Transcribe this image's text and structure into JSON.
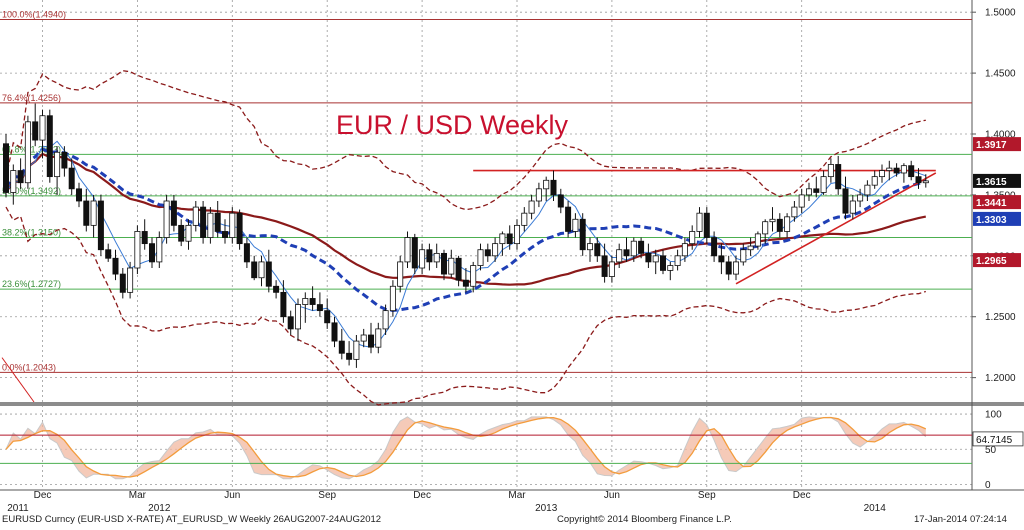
{
  "chart_data": [
    {
      "type": "candlestick",
      "title": "EUR / USD Weekly",
      "ylim": [
        1.18,
        1.51
      ],
      "grid": true,
      "yticks": [
        1.5,
        1.45,
        1.4,
        1.35,
        1.3,
        1.25,
        1.2
      ],
      "ytick_labels": [
        "1.5000",
        "1.4500",
        "1.4000",
        "1.3500",
        "1.3000",
        "1.2500",
        "1.2000"
      ],
      "candles": [
        {
          "o": 1.392,
          "h": 1.4,
          "l": 1.348,
          "c": 1.352
        },
        {
          "o": 1.352,
          "h": 1.375,
          "l": 1.342,
          "c": 1.37
        },
        {
          "o": 1.37,
          "h": 1.38,
          "l": 1.355,
          "c": 1.36
        },
        {
          "o": 1.36,
          "h": 1.415,
          "l": 1.355,
          "c": 1.41
        },
        {
          "o": 1.41,
          "h": 1.425,
          "l": 1.39,
          "c": 1.395
        },
        {
          "o": 1.395,
          "h": 1.42,
          "l": 1.38,
          "c": 1.415
        },
        {
          "o": 1.415,
          "h": 1.42,
          "l": 1.36,
          "c": 1.365
        },
        {
          "o": 1.365,
          "h": 1.39,
          "l": 1.35,
          "c": 1.385
        },
        {
          "o": 1.385,
          "h": 1.39,
          "l": 1.365,
          "c": 1.372
        },
        {
          "o": 1.372,
          "h": 1.38,
          "l": 1.35,
          "c": 1.355
        },
        {
          "o": 1.355,
          "h": 1.36,
          "l": 1.34,
          "c": 1.345
        },
        {
          "o": 1.345,
          "h": 1.355,
          "l": 1.32,
          "c": 1.325
        },
        {
          "o": 1.325,
          "h": 1.35,
          "l": 1.315,
          "c": 1.345
        },
        {
          "o": 1.345,
          "h": 1.35,
          "l": 1.3,
          "c": 1.305
        },
        {
          "o": 1.305,
          "h": 1.31,
          "l": 1.295,
          "c": 1.298
        },
        {
          "o": 1.298,
          "h": 1.305,
          "l": 1.28,
          "c": 1.285
        },
        {
          "o": 1.285,
          "h": 1.29,
          "l": 1.265,
          "c": 1.27
        },
        {
          "o": 1.27,
          "h": 1.295,
          "l": 1.265,
          "c": 1.29
        },
        {
          "o": 1.29,
          "h": 1.325,
          "l": 1.285,
          "c": 1.32
        },
        {
          "o": 1.32,
          "h": 1.33,
          "l": 1.305,
          "c": 1.31
        },
        {
          "o": 1.31,
          "h": 1.315,
          "l": 1.29,
          "c": 1.295
        },
        {
          "o": 1.295,
          "h": 1.32,
          "l": 1.29,
          "c": 1.315
        },
        {
          "o": 1.315,
          "h": 1.35,
          "l": 1.31,
          "c": 1.345
        },
        {
          "o": 1.345,
          "h": 1.35,
          "l": 1.32,
          "c": 1.325
        },
        {
          "o": 1.325,
          "h": 1.33,
          "l": 1.308,
          "c": 1.312
        },
        {
          "o": 1.312,
          "h": 1.33,
          "l": 1.305,
          "c": 1.325
        },
        {
          "o": 1.325,
          "h": 1.345,
          "l": 1.32,
          "c": 1.34
        },
        {
          "o": 1.34,
          "h": 1.345,
          "l": 1.31,
          "c": 1.315
        },
        {
          "o": 1.315,
          "h": 1.34,
          "l": 1.31,
          "c": 1.335
        },
        {
          "o": 1.335,
          "h": 1.345,
          "l": 1.315,
          "c": 1.32
        },
        {
          "o": 1.32,
          "h": 1.33,
          "l": 1.31,
          "c": 1.315
        },
        {
          "o": 1.315,
          "h": 1.34,
          "l": 1.31,
          "c": 1.335
        },
        {
          "o": 1.335,
          "h": 1.338,
          "l": 1.305,
          "c": 1.31
        },
        {
          "o": 1.31,
          "h": 1.315,
          "l": 1.29,
          "c": 1.295
        },
        {
          "o": 1.295,
          "h": 1.3,
          "l": 1.28,
          "c": 1.282
        },
        {
          "o": 1.282,
          "h": 1.3,
          "l": 1.275,
          "c": 1.295
        },
        {
          "o": 1.295,
          "h": 1.305,
          "l": 1.27,
          "c": 1.275
        },
        {
          "o": 1.275,
          "h": 1.28,
          "l": 1.265,
          "c": 1.27
        },
        {
          "o": 1.27,
          "h": 1.28,
          "l": 1.245,
          "c": 1.25
        },
        {
          "o": 1.25,
          "h": 1.255,
          "l": 1.235,
          "c": 1.24
        },
        {
          "o": 1.24,
          "h": 1.265,
          "l": 1.23,
          "c": 1.26
        },
        {
          "o": 1.26,
          "h": 1.27,
          "l": 1.245,
          "c": 1.265
        },
        {
          "o": 1.265,
          "h": 1.275,
          "l": 1.255,
          "c": 1.26
        },
        {
          "o": 1.26,
          "h": 1.27,
          "l": 1.25,
          "c": 1.255
        },
        {
          "o": 1.255,
          "h": 1.265,
          "l": 1.24,
          "c": 1.245
        },
        {
          "o": 1.245,
          "h": 1.25,
          "l": 1.225,
          "c": 1.23
        },
        {
          "o": 1.23,
          "h": 1.24,
          "l": 1.215,
          "c": 1.22
        },
        {
          "o": 1.22,
          "h": 1.23,
          "l": 1.21,
          "c": 1.215
        },
        {
          "o": 1.215,
          "h": 1.235,
          "l": 1.208,
          "c": 1.23
        },
        {
          "o": 1.23,
          "h": 1.24,
          "l": 1.225,
          "c": 1.235
        },
        {
          "o": 1.235,
          "h": 1.245,
          "l": 1.22,
          "c": 1.225
        },
        {
          "o": 1.225,
          "h": 1.245,
          "l": 1.22,
          "c": 1.24
        },
        {
          "o": 1.24,
          "h": 1.26,
          "l": 1.235,
          "c": 1.255
        },
        {
          "o": 1.255,
          "h": 1.28,
          "l": 1.25,
          "c": 1.275
        },
        {
          "o": 1.275,
          "h": 1.3,
          "l": 1.27,
          "c": 1.295
        },
        {
          "o": 1.295,
          "h": 1.32,
          "l": 1.29,
          "c": 1.315
        },
        {
          "o": 1.315,
          "h": 1.318,
          "l": 1.285,
          "c": 1.29
        },
        {
          "o": 1.29,
          "h": 1.31,
          "l": 1.285,
          "c": 1.305
        },
        {
          "o": 1.305,
          "h": 1.31,
          "l": 1.288,
          "c": 1.295
        },
        {
          "o": 1.295,
          "h": 1.31,
          "l": 1.29,
          "c": 1.302
        },
        {
          "o": 1.302,
          "h": 1.305,
          "l": 1.28,
          "c": 1.285
        },
        {
          "o": 1.285,
          "h": 1.305,
          "l": 1.282,
          "c": 1.298
        },
        {
          "o": 1.298,
          "h": 1.3,
          "l": 1.275,
          "c": 1.28
        },
        {
          "o": 1.28,
          "h": 1.29,
          "l": 1.27,
          "c": 1.275
        },
        {
          "o": 1.275,
          "h": 1.295,
          "l": 1.27,
          "c": 1.292
        },
        {
          "o": 1.292,
          "h": 1.31,
          "l": 1.288,
          "c": 1.305
        },
        {
          "o": 1.305,
          "h": 1.31,
          "l": 1.295,
          "c": 1.3
        },
        {
          "o": 1.3,
          "h": 1.315,
          "l": 1.295,
          "c": 1.31
        },
        {
          "o": 1.31,
          "h": 1.32,
          "l": 1.3,
          "c": 1.318
        },
        {
          "o": 1.318,
          "h": 1.325,
          "l": 1.305,
          "c": 1.31
        },
        {
          "o": 1.31,
          "h": 1.33,
          "l": 1.305,
          "c": 1.325
        },
        {
          "o": 1.325,
          "h": 1.34,
          "l": 1.32,
          "c": 1.335
        },
        {
          "o": 1.335,
          "h": 1.35,
          "l": 1.33,
          "c": 1.345
        },
        {
          "o": 1.345,
          "h": 1.36,
          "l": 1.34,
          "c": 1.355
        },
        {
          "o": 1.355,
          "h": 1.365,
          "l": 1.345,
          "c": 1.362
        },
        {
          "o": 1.362,
          "h": 1.37,
          "l": 1.345,
          "c": 1.35
        },
        {
          "o": 1.35,
          "h": 1.355,
          "l": 1.335,
          "c": 1.34
        },
        {
          "o": 1.34,
          "h": 1.345,
          "l": 1.315,
          "c": 1.32
        },
        {
          "o": 1.32,
          "h": 1.335,
          "l": 1.315,
          "c": 1.33
        },
        {
          "o": 1.33,
          "h": 1.335,
          "l": 1.3,
          "c": 1.305
        },
        {
          "o": 1.305,
          "h": 1.315,
          "l": 1.295,
          "c": 1.31
        },
        {
          "o": 1.31,
          "h": 1.315,
          "l": 1.295,
          "c": 1.3
        },
        {
          "o": 1.3,
          "h": 1.31,
          "l": 1.278,
          "c": 1.283
        },
        {
          "o": 1.283,
          "h": 1.3,
          "l": 1.278,
          "c": 1.295
        },
        {
          "o": 1.295,
          "h": 1.31,
          "l": 1.29,
          "c": 1.305
        },
        {
          "o": 1.305,
          "h": 1.315,
          "l": 1.295,
          "c": 1.3
        },
        {
          "o": 1.3,
          "h": 1.315,
          "l": 1.295,
          "c": 1.312
        },
        {
          "o": 1.312,
          "h": 1.315,
          "l": 1.298,
          "c": 1.302
        },
        {
          "o": 1.302,
          "h": 1.31,
          "l": 1.29,
          "c": 1.295
        },
        {
          "o": 1.295,
          "h": 1.305,
          "l": 1.285,
          "c": 1.3
        },
        {
          "o": 1.3,
          "h": 1.305,
          "l": 1.285,
          "c": 1.288
        },
        {
          "o": 1.288,
          "h": 1.295,
          "l": 1.28,
          "c": 1.292
        },
        {
          "o": 1.292,
          "h": 1.305,
          "l": 1.288,
          "c": 1.3
        },
        {
          "o": 1.3,
          "h": 1.315,
          "l": 1.295,
          "c": 1.31
        },
        {
          "o": 1.31,
          "h": 1.325,
          "l": 1.305,
          "c": 1.32
        },
        {
          "o": 1.32,
          "h": 1.34,
          "l": 1.315,
          "c": 1.335
        },
        {
          "o": 1.335,
          "h": 1.34,
          "l": 1.31,
          "c": 1.315
        },
        {
          "o": 1.315,
          "h": 1.32,
          "l": 1.295,
          "c": 1.3
        },
        {
          "o": 1.3,
          "h": 1.31,
          "l": 1.285,
          "c": 1.295
        },
        {
          "o": 1.295,
          "h": 1.3,
          "l": 1.28,
          "c": 1.285
        },
        {
          "o": 1.285,
          "h": 1.3,
          "l": 1.28,
          "c": 1.295
        },
        {
          "o": 1.295,
          "h": 1.31,
          "l": 1.292,
          "c": 1.305
        },
        {
          "o": 1.305,
          "h": 1.315,
          "l": 1.3,
          "c": 1.308
        },
        {
          "o": 1.308,
          "h": 1.32,
          "l": 1.305,
          "c": 1.318
        },
        {
          "o": 1.318,
          "h": 1.33,
          "l": 1.31,
          "c": 1.328
        },
        {
          "o": 1.328,
          "h": 1.34,
          "l": 1.32,
          "c": 1.33
        },
        {
          "o": 1.33,
          "h": 1.335,
          "l": 1.315,
          "c": 1.32
        },
        {
          "o": 1.32,
          "h": 1.335,
          "l": 1.315,
          "c": 1.332
        },
        {
          "o": 1.332,
          "h": 1.345,
          "l": 1.328,
          "c": 1.34
        },
        {
          "o": 1.34,
          "h": 1.355,
          "l": 1.335,
          "c": 1.35
        },
        {
          "o": 1.35,
          "h": 1.36,
          "l": 1.345,
          "c": 1.355
        },
        {
          "o": 1.355,
          "h": 1.365,
          "l": 1.348,
          "c": 1.352
        },
        {
          "o": 1.352,
          "h": 1.37,
          "l": 1.35,
          "c": 1.365
        },
        {
          "o": 1.365,
          "h": 1.38,
          "l": 1.36,
          "c": 1.375
        },
        {
          "o": 1.375,
          "h": 1.382,
          "l": 1.35,
          "c": 1.355
        },
        {
          "o": 1.355,
          "h": 1.365,
          "l": 1.33,
          "c": 1.335
        },
        {
          "o": 1.335,
          "h": 1.35,
          "l": 1.33,
          "c": 1.345
        },
        {
          "o": 1.345,
          "h": 1.355,
          "l": 1.34,
          "c": 1.35
        },
        {
          "o": 1.35,
          "h": 1.362,
          "l": 1.345,
          "c": 1.358
        },
        {
          "o": 1.358,
          "h": 1.37,
          "l": 1.355,
          "c": 1.365
        },
        {
          "o": 1.365,
          "h": 1.375,
          "l": 1.36,
          "c": 1.37
        },
        {
          "o": 1.37,
          "h": 1.378,
          "l": 1.362,
          "c": 1.372
        },
        {
          "o": 1.372,
          "h": 1.376,
          "l": 1.365,
          "c": 1.368
        },
        {
          "o": 1.368,
          "h": 1.376,
          "l": 1.36,
          "c": 1.374
        },
        {
          "o": 1.374,
          "h": 1.378,
          "l": 1.362,
          "c": 1.365
        },
        {
          "o": 1.365,
          "h": 1.372,
          "l": 1.355,
          "c": 1.36
        },
        {
          "o": 1.36,
          "h": 1.367,
          "l": 1.356,
          "c": 1.3615
        }
      ]
    },
    {
      "type": "line",
      "ylim": [
        -5,
        110
      ],
      "yticks": [
        0,
        50,
        100
      ],
      "ytick_labels": [
        "0",
        "50",
        "100"
      ]
    }
  ],
  "x_labels": [
    {
      "label": "Dec",
      "w": 5
    },
    {
      "label": "Mar",
      "w": 18
    },
    {
      "label": "Jun",
      "w": 31
    },
    {
      "label": "Sep",
      "w": 44
    },
    {
      "label": "Dec",
      "w": 57
    },
    {
      "label": "Mar",
      "w": 70
    },
    {
      "label": "Jun",
      "w": 83
    },
    {
      "label": "Sep",
      "w": 96
    },
    {
      "label": "Dec",
      "w": 109
    }
  ],
  "year_labels": [
    {
      "label": "2011",
      "w": -7
    },
    {
      "label": "2012",
      "w": 21
    },
    {
      "label": "2013",
      "w": 74
    },
    {
      "label": "2014",
      "w": 119
    }
  ],
  "fib_levels": [
    {
      "label": "100.0%(1.4940)",
      "value": 1.494
    },
    {
      "label": "76.4%(1.4256)",
      "value": 1.4256
    },
    {
      "label": "61.8%(1.3833)",
      "value": 1.3833
    },
    {
      "label": "50.0%(1.3492)",
      "value": 1.3492
    },
    {
      "label": "38.2%(1.3150)",
      "value": 1.315
    },
    {
      "label": "23.6%(1.2727)",
      "value": 1.2727
    },
    {
      "label": "0.0%(1.2043)",
      "value": 1.2043
    }
  ],
  "price_tags": [
    {
      "label": "1.3917",
      "value": 1.3917,
      "color": "#b2182b"
    },
    {
      "label": "1.3615",
      "value": 1.3615,
      "color": "#111111"
    },
    {
      "label": "1.3441",
      "value": 1.3441,
      "color": "#b2182b"
    },
    {
      "label": "1.3303",
      "value": 1.3303,
      "color": "#1f3fb5"
    },
    {
      "label": "1.2965",
      "value": 1.2965,
      "color": "#b2182b"
    }
  ],
  "osc_tag": {
    "label": "64.7145",
    "value": 64.7145
  },
  "osc_levels": {
    "upper": 70,
    "lower": 30
  },
  "resistance_level": 1.37,
  "footer": {
    "left": "EURUSD Curncy (EUR-USD X-RATE) AT_EURUSD_W  Weekly 26AUG2007-24AUG2012",
    "center": "Copyright© 2014 Bloomberg Finance L.P.",
    "right": "17-Jan-2014 07:24:14"
  },
  "colors": {
    "candle_up": "#ffffff",
    "candle_down": "#111111",
    "sma_blue": "#1f3fb5",
    "ma_thin": "#3a7bd5",
    "ma_red": "#8b1a1a",
    "bollinger": "#8b1a1a",
    "fib_red": "#a83232",
    "fib_green": "#4caf50",
    "trend": "#d22222"
  }
}
